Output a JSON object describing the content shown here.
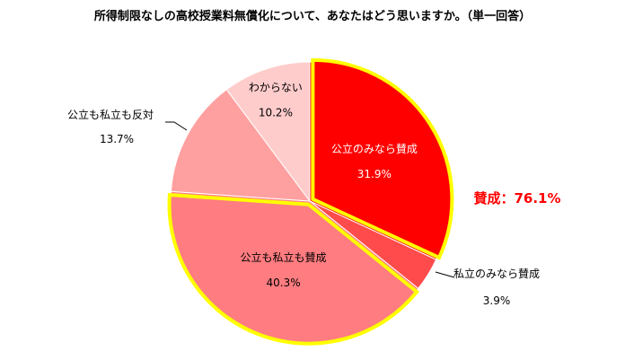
{
  "chart_data": {
    "type": "pie",
    "title": "所得制限なしの高校授業料無償化について、あなたはどう思いますか。（単一回答）",
    "slices": [
      {
        "label": "公立のみなら賛成",
        "value": 31.9,
        "value_label": "31.9%",
        "color": "#FF0000",
        "text_color": "#FFFFFF",
        "highlight": true
      },
      {
        "label": "私立のみなら賛成",
        "value": 3.9,
        "value_label": "3.9%",
        "color": "#FF4B4B",
        "text_color": "#000000",
        "highlight": false
      },
      {
        "label": "公立も私立も賛成",
        "value": 40.3,
        "value_label": "40.3%",
        "color": "#FF7C80",
        "text_color": "#000000",
        "highlight": true
      },
      {
        "label": "公立も私立も反対",
        "value": 13.7,
        "value_label": "13.7%",
        "color": "#FFA0A0",
        "text_color": "#000000",
        "highlight": false
      },
      {
        "label": "わからない",
        "value": 10.2,
        "value_label": "10.2%",
        "color": "#FFCCCC",
        "text_color": "#000000",
        "highlight": false
      }
    ],
    "highlight_color": "#FFFF00",
    "summary": {
      "text": "賛成：76.1%",
      "color": "#FF0000"
    }
  }
}
